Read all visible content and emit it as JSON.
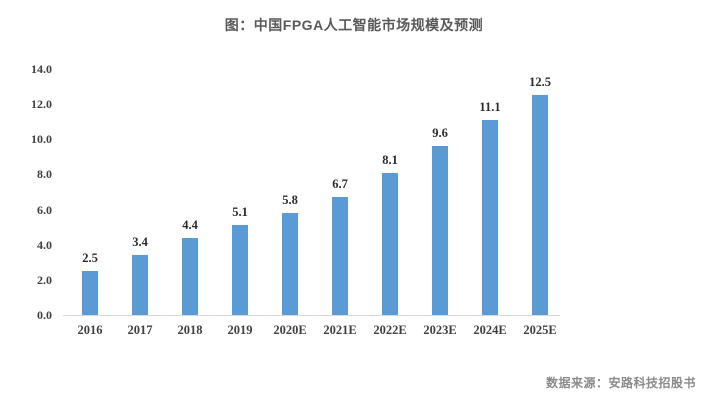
{
  "title": "图：中国FPGA人工智能市场规模及预测",
  "source": "数据来源：安路科技招股书",
  "chart_data": {
    "type": "bar",
    "title": "图：中国FPGA人工智能市场规模及预测",
    "categories": [
      "2016",
      "2017",
      "2018",
      "2019",
      "2020E",
      "2021E",
      "2022E",
      "2023E",
      "2024E",
      "2025E"
    ],
    "values": [
      2.5,
      3.4,
      4.4,
      5.1,
      5.8,
      6.7,
      8.1,
      9.6,
      11.1,
      12.5
    ],
    "xlabel": "",
    "ylabel": "",
    "ylim": [
      0,
      14
    ],
    "ytick_step": 2,
    "ytick_labels": [
      "0.0",
      "2.0",
      "4.0",
      "6.0",
      "8.0",
      "10.0",
      "12.0",
      "14.0"
    ],
    "grid": false,
    "legend": "none",
    "data_labels": true,
    "bar_color": "#5b9bd5",
    "axis_line_color": "#d9d9d9",
    "source_note": "数据来源：安路科技招股书"
  }
}
